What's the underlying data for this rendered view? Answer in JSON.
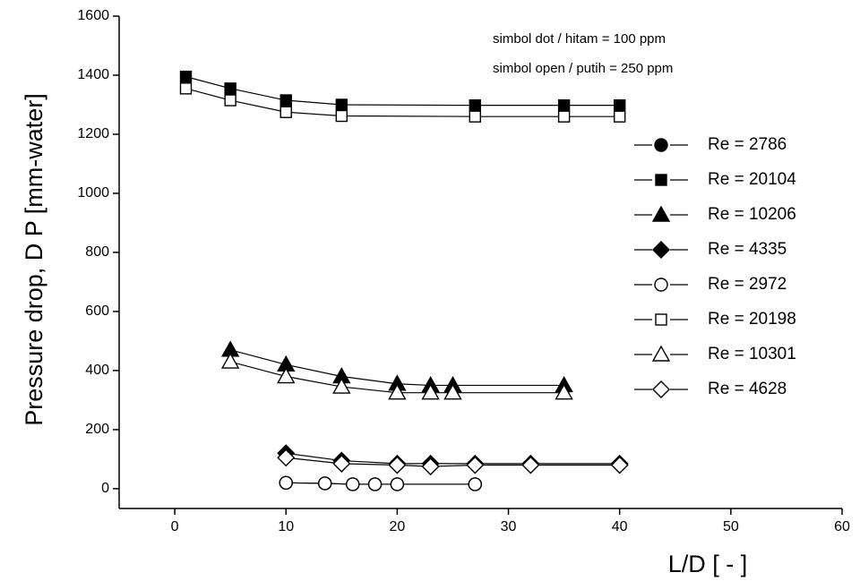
{
  "chart_data": {
    "type": "line",
    "annotations": [
      "simbol dot / hitam = 100 ppm",
      "simbol open / putih = 250 ppm"
    ],
    "x_label": "L/D  [ - ]",
    "y_label": "Pressure drop,   D P  [mm-water]",
    "xlim": [
      -5,
      60
    ],
    "xticks": [
      0,
      10,
      20,
      30,
      40,
      50,
      60
    ],
    "ylim": [
      -67,
      1600
    ],
    "yticks": [
      0,
      200,
      400,
      600,
      800,
      1000,
      1200,
      1400,
      1600
    ],
    "legend": "right",
    "series": [
      {
        "name": "Re = 2786",
        "color": "#000000",
        "marker": "circle",
        "filled": true,
        "x": [
          10,
          13.5,
          16,
          18,
          20,
          27
        ],
        "values": [
          20,
          18,
          15,
          15,
          15,
          15
        ]
      },
      {
        "name": "Re = 20104",
        "color": "#000000",
        "marker": "square",
        "filled": true,
        "x": [
          1,
          5,
          10,
          15,
          27,
          35,
          40
        ],
        "values": [
          1395,
          1355,
          1315,
          1300,
          1298,
          1298,
          1298
        ]
      },
      {
        "name": "Re = 10206",
        "color": "#000000",
        "marker": "triangle",
        "filled": true,
        "x": [
          5,
          10,
          15,
          20,
          23,
          25,
          35
        ],
        "values": [
          470,
          420,
          380,
          355,
          350,
          350,
          350
        ]
      },
      {
        "name": "Re = 4335",
        "color": "#000000",
        "marker": "diamond",
        "filled": true,
        "x": [
          10,
          15,
          20,
          23,
          27,
          32,
          40
        ],
        "values": [
          120,
          95,
          85,
          85,
          85,
          85,
          85
        ]
      },
      {
        "name": "Re = 2972",
        "color": "#000000",
        "marker": "circle",
        "filled": false,
        "x": [
          10,
          13.5,
          16,
          18,
          20,
          27
        ],
        "values": [
          20,
          18,
          15,
          15,
          15,
          15
        ]
      },
      {
        "name": "Re = 20198",
        "color": "#000000",
        "marker": "square",
        "filled": false,
        "x": [
          1,
          5,
          10,
          15,
          27,
          35,
          40
        ],
        "values": [
          1355,
          1315,
          1275,
          1262,
          1260,
          1260,
          1260
        ]
      },
      {
        "name": "Re = 10301",
        "color": "#000000",
        "marker": "triangle",
        "filled": false,
        "x": [
          5,
          10,
          15,
          20,
          23,
          25,
          35
        ],
        "values": [
          430,
          380,
          345,
          325,
          325,
          325,
          325
        ]
      },
      {
        "name": "Re = 4628",
        "color": "#000000",
        "marker": "diamond",
        "filled": false,
        "x": [
          10,
          15,
          20,
          23,
          27,
          32,
          40
        ],
        "values": [
          105,
          85,
          80,
          75,
          80,
          80,
          80
        ]
      }
    ]
  }
}
